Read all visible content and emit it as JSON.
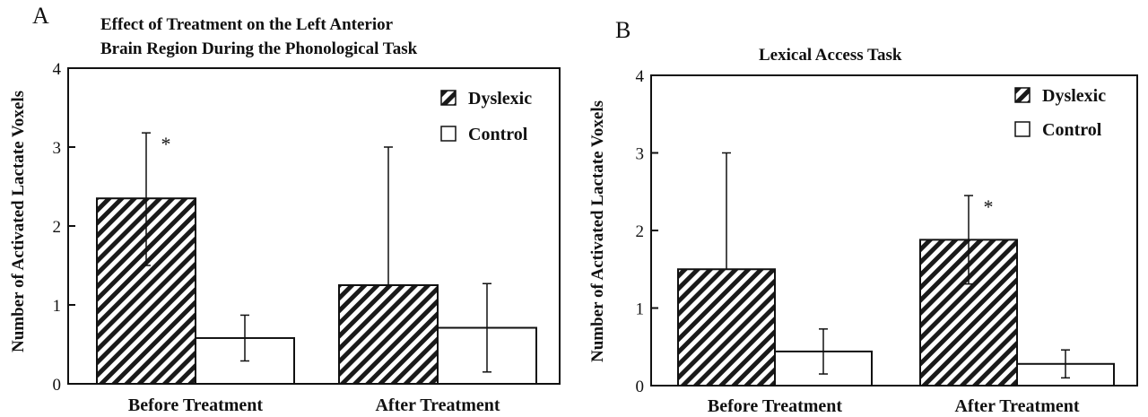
{
  "chart_data": [
    {
      "panel_label": "A",
      "type": "bar",
      "title_lines": [
        "Effect of Treatment on the Left Anterior",
        "Brain Region During the Phonological Task"
      ],
      "ylabel": "Number of Activated Lactate Voxels",
      "xlabel": "",
      "ylim": [
        0,
        4
      ],
      "yticks": [
        0,
        1,
        2,
        3,
        4
      ],
      "categories": [
        "Before Treatment",
        "After Treatment"
      ],
      "series": [
        {
          "name": "Dyslexic",
          "pattern": "hatched",
          "values": [
            2.35,
            1.25
          ],
          "error": [
            0.83,
            1.75
          ],
          "lower_error": [
            0.85,
            0.0
          ]
        },
        {
          "name": "Control",
          "pattern": "open",
          "values": [
            0.58,
            0.71
          ],
          "error": [
            0.29,
            0.56
          ],
          "lower_error": [
            0.29,
            0.56
          ]
        }
      ],
      "annotations": [
        {
          "text": "*",
          "category": 0,
          "series": 0
        }
      ],
      "legend_position": "top-right",
      "grid": false
    },
    {
      "panel_label": "B",
      "type": "bar",
      "title_lines": [
        "Lexical Access Task"
      ],
      "ylabel": "Number of Activated Lactate Voxels",
      "xlabel": "",
      "ylim": [
        0,
        4
      ],
      "yticks": [
        0,
        1,
        2,
        3,
        4
      ],
      "categories": [
        "Before Treatment",
        "After Treatment"
      ],
      "series": [
        {
          "name": "Dyslexic",
          "pattern": "hatched",
          "values": [
            1.5,
            1.88
          ],
          "error": [
            1.5,
            0.57
          ],
          "lower_error": [
            0.0,
            0.57
          ]
        },
        {
          "name": "Control",
          "pattern": "open",
          "values": [
            0.44,
            0.28
          ],
          "error": [
            0.29,
            0.18
          ],
          "lower_error": [
            0.29,
            0.18
          ]
        }
      ],
      "annotations": [
        {
          "text": "*",
          "category": 1,
          "series": 0
        }
      ],
      "legend_position": "top-right",
      "grid": false
    }
  ]
}
